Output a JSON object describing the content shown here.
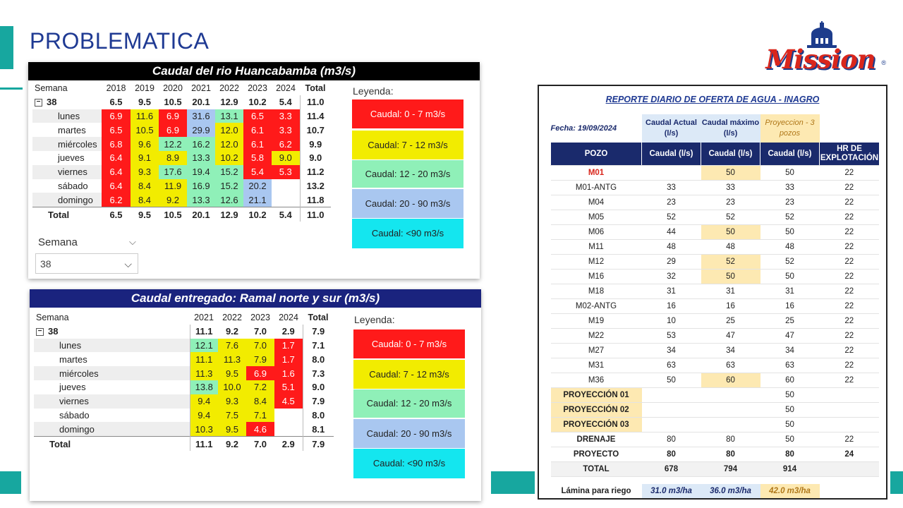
{
  "title": "PROBLEMATICA",
  "logo": {
    "text": "Mission",
    "reg": "®"
  },
  "chart1": {
    "title": "Caudal del rio Huancabamba (m3/s)",
    "col_header": "Semana",
    "years": [
      "2018",
      "2019",
      "2020",
      "2021",
      "2022",
      "2023",
      "2024",
      "Total"
    ],
    "group": {
      "label": "38",
      "values": [
        "6.5",
        "9.5",
        "10.5",
        "20.1",
        "12.9",
        "10.2",
        "5.4",
        "11.0"
      ]
    },
    "rows": [
      {
        "label": "lunes",
        "values": [
          "6.9",
          "11.6",
          "6.9",
          "31.6",
          "13.1",
          "6.5",
          "3.3",
          "11.4"
        ]
      },
      {
        "label": "martes",
        "values": [
          "6.5",
          "10.5",
          "6.9",
          "29.9",
          "12.0",
          "6.1",
          "3.3",
          "10.7"
        ]
      },
      {
        "label": "miércoles",
        "values": [
          "6.8",
          "9.6",
          "12.2",
          "16.2",
          "12.0",
          "6.1",
          "6.2",
          "9.9"
        ]
      },
      {
        "label": "jueves",
        "values": [
          "6.4",
          "9.1",
          "8.9",
          "13.3",
          "10.2",
          "5.8",
          "9.0",
          "9.0"
        ]
      },
      {
        "label": "viernes",
        "values": [
          "6.4",
          "9.3",
          "17.6",
          "19.4",
          "15.2",
          "5.4",
          "5.3",
          "11.2"
        ]
      },
      {
        "label": "sábado",
        "values": [
          "6.4",
          "8.4",
          "11.9",
          "16.9",
          "15.2",
          "20.2",
          "",
          "13.2"
        ]
      },
      {
        "label": "domingo",
        "values": [
          "6.2",
          "8.4",
          "9.2",
          "13.3",
          "12.6",
          "21.1",
          "",
          "11.8"
        ]
      }
    ],
    "total": {
      "label": "Total",
      "values": [
        "6.5",
        "9.5",
        "10.5",
        "20.1",
        "12.9",
        "10.2",
        "5.4",
        "11.0"
      ]
    },
    "slicer": {
      "label": "Semana",
      "value": "38"
    }
  },
  "chart2": {
    "title": "Caudal entregado: Ramal norte y sur (m3/s)",
    "col_header": "Semana",
    "years": [
      "2021",
      "2022",
      "2023",
      "2024",
      "Total"
    ],
    "group": {
      "label": "38",
      "values": [
        "11.1",
        "9.2",
        "7.0",
        "2.9",
        "7.9"
      ]
    },
    "rows": [
      {
        "label": "lunes",
        "values": [
          "12.1",
          "7.6",
          "7.0",
          "1.7",
          "7.1"
        ]
      },
      {
        "label": "martes",
        "values": [
          "11.1",
          "11.3",
          "7.9",
          "1.7",
          "8.0"
        ]
      },
      {
        "label": "miércoles",
        "values": [
          "11.3",
          "9.5",
          "6.9",
          "1.6",
          "7.3"
        ]
      },
      {
        "label": "jueves",
        "values": [
          "13.8",
          "10.0",
          "7.2",
          "5.1",
          "9.0"
        ]
      },
      {
        "label": "viernes",
        "values": [
          "9.4",
          "9.3",
          "8.4",
          "4.5",
          "7.9"
        ]
      },
      {
        "label": "sábado",
        "values": [
          "9.4",
          "7.5",
          "7.1",
          "",
          "8.0"
        ]
      },
      {
        "label": "domingo",
        "values": [
          "10.3",
          "9.5",
          "4.6",
          "",
          "8.1"
        ]
      }
    ],
    "total": {
      "label": "Total",
      "values": [
        "11.1",
        "9.2",
        "7.0",
        "2.9",
        "7.9"
      ]
    }
  },
  "legend": {
    "title": "Leyenda:",
    "items": [
      "Caudal: 0 - 7 m3/s",
      "Caudal: 7 - 12 m3/s",
      "Caudal: 12 - 20 m3/s",
      "Caudal: 20 - 90 m3/s",
      "Caudal: <90 m3/s"
    ]
  },
  "report": {
    "title": "REPORTE DIARIO DE OFERTA DE AGUA - INAGRO",
    "fecha": "Fecha: 19/09/2024",
    "top_headers": [
      "Caudal Actual (l/s)",
      "Caudal máximo (l/s)",
      "Proyeccion - 3 pozos"
    ],
    "headers": [
      "POZO",
      "Caudal (l/s)",
      "Caudal (l/s)",
      "Caudal (l/s)",
      "HR DE EXPLOTACIÓN"
    ],
    "rows": [
      [
        "M01",
        "",
        "50",
        "50",
        "22"
      ],
      [
        "M01-ANTG",
        "33",
        "33",
        "33",
        "22"
      ],
      [
        "M04",
        "23",
        "23",
        "23",
        "22"
      ],
      [
        "M05",
        "52",
        "52",
        "52",
        "22"
      ],
      [
        "M06",
        "44",
        "50",
        "50",
        "22"
      ],
      [
        "M11",
        "48",
        "48",
        "48",
        "22"
      ],
      [
        "M12",
        "29",
        "52",
        "52",
        "22"
      ],
      [
        "M16",
        "32",
        "50",
        "50",
        "22"
      ],
      [
        "M18",
        "31",
        "31",
        "31",
        "22"
      ],
      [
        "M02-ANTG",
        "16",
        "16",
        "16",
        "22"
      ],
      [
        "M19",
        "10",
        "25",
        "25",
        "22"
      ],
      [
        "M22",
        "53",
        "47",
        "47",
        "22"
      ],
      [
        "M27",
        "34",
        "34",
        "34",
        "22"
      ],
      [
        "M31",
        "63",
        "63",
        "63",
        "22"
      ],
      [
        "M36",
        "50",
        "60",
        "60",
        "22"
      ],
      [
        "PROYECCIÓN 01",
        "",
        "",
        "50",
        ""
      ],
      [
        "PROYECCIÓN 02",
        "",
        "",
        "50",
        ""
      ],
      [
        "PROYECCIÓN 03",
        "",
        "",
        "50",
        ""
      ],
      [
        "DRENAJE",
        "80",
        "80",
        "50",
        "22"
      ],
      [
        "PROYECTO",
        "80",
        "80",
        "80",
        "24"
      ],
      [
        "TOTAL",
        "678",
        "794",
        "914",
        ""
      ]
    ],
    "lamina": {
      "label": "Lámina para riego",
      "values": [
        "31.0 m3/ha",
        "36.0 m3/ha",
        "42.0 m3/ha"
      ]
    }
  }
}
